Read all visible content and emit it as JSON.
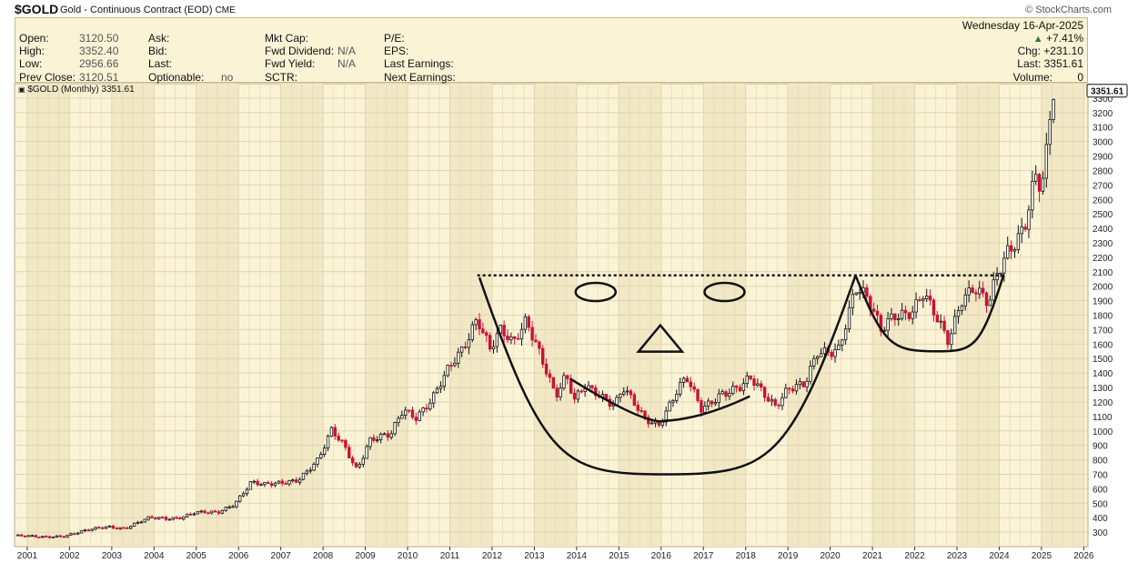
{
  "header": {
    "symbol": "$GOLD",
    "description": "Gold - Continuous Contract (EOD)",
    "exchange": "CME",
    "watermark": "© StockCharts.com"
  },
  "quote": {
    "date": "Wednesday  16-Apr-2025",
    "change_pct": "+7.41%",
    "chg": "Chg: +231.10",
    "last": "Last: 3351.61",
    "volume_label": "Volume:",
    "volume_value": "0",
    "open_label": "Open:",
    "open_value": "3120.50",
    "high_label": "High:",
    "high_value": "3352.40",
    "low_label": "Low:",
    "low_value": "2956.66",
    "prev_label": "Prev Close:",
    "prev_value": "3120.51",
    "ask_label": "Ask:",
    "bid_label": "Bid:",
    "last_label": "Last:",
    "optionable_label": "Optionable:",
    "optionable_value": "no",
    "mktcap_label": "Mkt Cap:",
    "fwddiv_label": "Fwd Dividend:",
    "fwddiv_value": "N/A",
    "fwdyield_label": "Fwd Yield:",
    "fwdyield_value": "N/A",
    "sctr_label": "SCTR:",
    "pe_label": "P/E:",
    "eps_label": "EPS:",
    "lastearn_label": "Last Earnings:",
    "nextearn_label": "Next Earnings:"
  },
  "legend": "$GOLD (Monthly) 3351.61",
  "colors": {
    "up": "#111111",
    "down": "#cc1133",
    "bg": "#fbf3d6",
    "alt": "#f2e8c5",
    "grid": "#e0d6b4",
    "badge": "#111111"
  },
  "chart_data": {
    "type": "candlestick",
    "title": "$GOLD (Monthly) 3351.61",
    "x_tick_labels": [
      "2001",
      "2002",
      "2003",
      "2004",
      "2005",
      "2006",
      "2007",
      "2008",
      "2009",
      "2010",
      "2011",
      "2012",
      "2013",
      "2014",
      "2015",
      "2016",
      "2017",
      "2018",
      "2019",
      "2020",
      "2021",
      "2022",
      "2023",
      "2024",
      "2025",
      "2026"
    ],
    "y_tick_labels": [
      300,
      400,
      500,
      600,
      700,
      800,
      900,
      1000,
      1100,
      1200,
      1300,
      1400,
      1500,
      1600,
      1700,
      1800,
      1900,
      2000,
      2100,
      2200,
      2300,
      2400,
      2500,
      2600,
      2700,
      2800,
      2900,
      3000,
      3100,
      3200,
      3300
    ],
    "ylim": [
      200,
      3400
    ],
    "xlim": [
      2000.7,
      2026.1
    ],
    "last_value_label": "3351.61",
    "last_value": 3351.61,
    "monthly_path": [
      [
        2000.7,
        275
      ],
      [
        2001.3,
        265
      ],
      [
        2001.9,
        278
      ],
      [
        2002.5,
        315
      ],
      [
        2002.9,
        340
      ],
      [
        2003.3,
        330
      ],
      [
        2003.9,
        395
      ],
      [
        2004.3,
        395
      ],
      [
        2004.6,
        405
      ],
      [
        2004.95,
        435
      ],
      [
        2005.5,
        430
      ],
      [
        2005.9,
        500
      ],
      [
        2006.3,
        650
      ],
      [
        2006.6,
        620
      ],
      [
        2006.9,
        630
      ],
      [
        2007.4,
        670
      ],
      [
        2007.9,
        800
      ],
      [
        2008.2,
        990
      ],
      [
        2008.5,
        900
      ],
      [
        2008.8,
        740
      ],
      [
        2009.1,
        940
      ],
      [
        2009.6,
        960
      ],
      [
        2009.9,
        1150
      ],
      [
        2010.2,
        1110
      ],
      [
        2010.6,
        1230
      ],
      [
        2010.95,
        1400
      ],
      [
        2011.3,
        1560
      ],
      [
        2011.65,
        1810
      ],
      [
        2011.95,
        1580
      ],
      [
        2012.2,
        1680
      ],
      [
        2012.5,
        1580
      ],
      [
        2012.8,
        1770
      ],
      [
        2013.0,
        1660
      ],
      [
        2013.3,
        1420
      ],
      [
        2013.5,
        1230
      ],
      [
        2013.75,
        1360
      ],
      [
        2013.95,
        1200
      ],
      [
        2014.2,
        1320
      ],
      [
        2014.5,
        1280
      ],
      [
        2014.9,
        1170
      ],
      [
        2015.1,
        1280
      ],
      [
        2015.6,
        1090
      ],
      [
        2015.95,
        1060
      ],
      [
        2016.4,
        1280
      ],
      [
        2016.6,
        1350
      ],
      [
        2016.95,
        1150
      ],
      [
        2017.4,
        1270
      ],
      [
        2017.9,
        1290
      ],
      [
        2018.1,
        1350
      ],
      [
        2018.7,
        1190
      ],
      [
        2019.0,
        1300
      ],
      [
        2019.4,
        1300
      ],
      [
        2019.7,
        1530
      ],
      [
        2020.2,
        1590
      ],
      [
        2020.6,
        1980
      ],
      [
        2020.9,
        1880
      ],
      [
        2021.2,
        1700
      ],
      [
        2021.5,
        1830
      ],
      [
        2021.95,
        1820
      ],
      [
        2022.2,
        1920
      ],
      [
        2022.5,
        1780
      ],
      [
        2022.8,
        1640
      ],
      [
        2023.1,
        1930
      ],
      [
        2023.4,
        1980
      ],
      [
        2023.75,
        1850
      ],
      [
        2023.95,
        2070
      ],
      [
        2024.2,
        2260
      ],
      [
        2024.6,
        2440
      ],
      [
        2024.85,
        2750
      ],
      [
        2025.0,
        2640
      ],
      [
        2025.1,
        2820
      ],
      [
        2025.2,
        3120
      ],
      [
        2025.3,
        3351
      ]
    ],
    "annotations": {
      "resistance_level": 2075,
      "large_cup": {
        "from": [
          2011.7,
          2060
        ],
        "bottom": [
          2016.1,
          700
        ],
        "to": [
          2020.6,
          2075
        ]
      },
      "small_cup": {
        "from": [
          2020.6,
          2075
        ],
        "bottom": [
          2022.55,
          1550
        ],
        "to": [
          2024.1,
          2075
        ]
      },
      "eyes": [
        {
          "x": 2014.45,
          "y": 1960
        },
        {
          "x": 2017.5,
          "y": 1960
        }
      ],
      "nose_apex": [
        2015.98,
        1730
      ],
      "mouth": {
        "from": [
          2013.85,
          1360
        ],
        "bottom": [
          2016.1,
          1070
        ],
        "to": [
          2018.1,
          1240
        ]
      }
    }
  }
}
